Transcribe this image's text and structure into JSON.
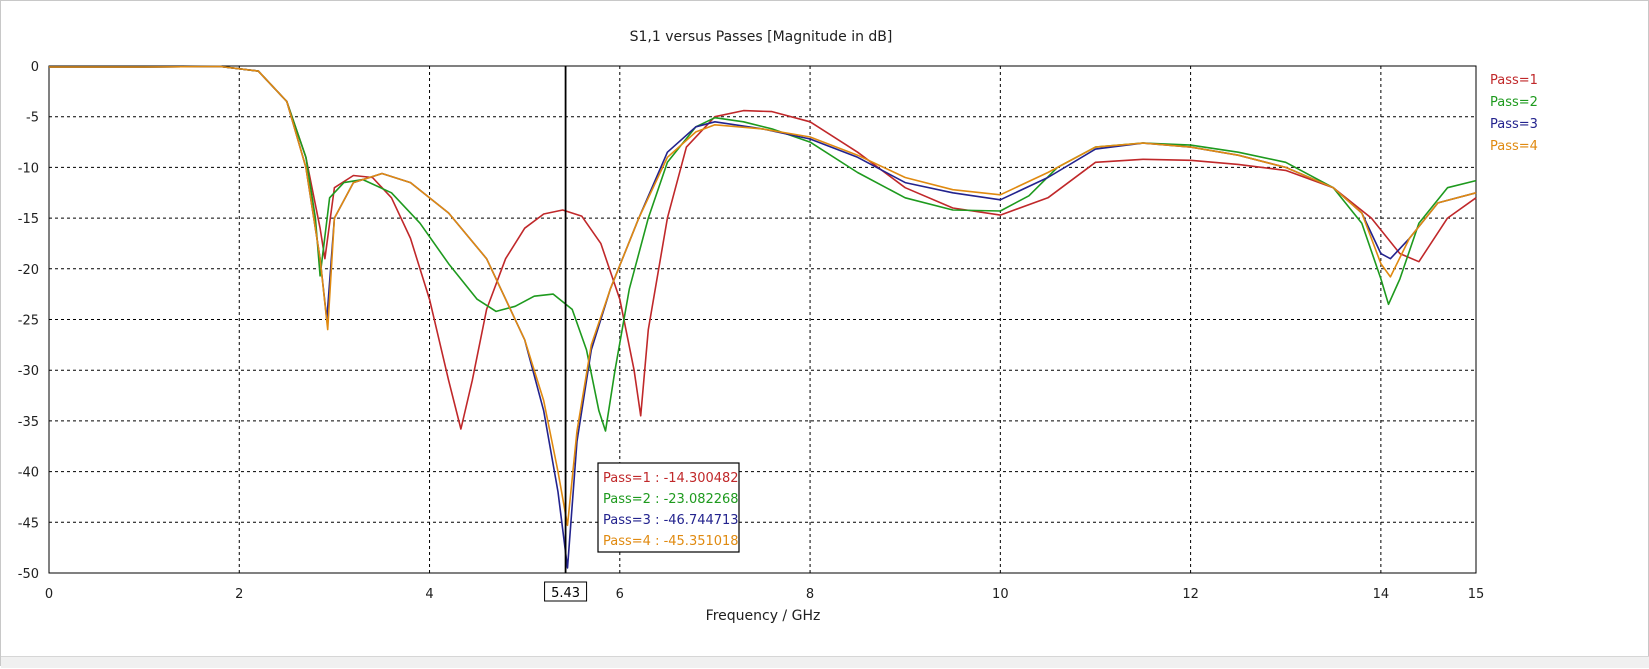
{
  "chart_data": {
    "type": "line",
    "title": "S1,1 versus Passes [Magnitude in dB]",
    "xlabel": "Frequency / GHz",
    "ylabel": "",
    "xlim": [
      0,
      15
    ],
    "ylim": [
      -50,
      0
    ],
    "xticks": [
      0,
      2,
      4,
      6,
      8,
      10,
      12,
      14,
      15
    ],
    "yticks": [
      0,
      -5,
      -10,
      -15,
      -20,
      -25,
      -30,
      -35,
      -40,
      -45,
      -50
    ],
    "grid": true,
    "legend_position": "right",
    "marker": {
      "x": 5.43,
      "label": "5.43"
    },
    "readout": [
      {
        "text": "Pass=1 : -14.300482",
        "color": "#c0282a"
      },
      {
        "text": "Pass=2 : -23.082268",
        "color": "#1e9a1e"
      },
      {
        "text": "Pass=3 : -46.744713",
        "color": "#23238e"
      },
      {
        "text": "Pass=4 : -45.351018",
        "color": "#e08a10"
      }
    ],
    "series": [
      {
        "name": "Pass=1",
        "color": "#c0282a",
        "x": [
          0,
          1,
          1.8,
          2.2,
          2.5,
          2.7,
          2.85,
          2.9,
          3.0,
          3.2,
          3.4,
          3.6,
          3.8,
          4.0,
          4.2,
          4.33,
          4.45,
          4.6,
          4.8,
          5.0,
          5.2,
          5.4,
          5.6,
          5.8,
          6.0,
          6.15,
          6.22,
          6.3,
          6.5,
          6.7,
          7.0,
          7.3,
          7.6,
          8.0,
          8.5,
          9.0,
          9.5,
          10.0,
          10.5,
          11.0,
          11.5,
          12.0,
          12.5,
          13.0,
          13.5,
          13.9,
          14.2,
          14.4,
          14.7,
          15.0
        ],
        "y": [
          -0.1,
          -0.1,
          -0.05,
          -0.5,
          -3.5,
          -9,
          -16,
          -19,
          -12,
          -10.8,
          -11,
          -13,
          -17,
          -23,
          -31,
          -35.8,
          -31,
          -24,
          -19,
          -16,
          -14.6,
          -14.2,
          -14.8,
          -17.5,
          -23,
          -30,
          -34.5,
          -26,
          -15,
          -8,
          -5,
          -4.4,
          -4.5,
          -5.5,
          -8.5,
          -12,
          -14,
          -14.7,
          -13,
          -9.5,
          -9.2,
          -9.3,
          -9.7,
          -10.3,
          -12,
          -15,
          -18.5,
          -19.3,
          -15,
          -13
        ]
      },
      {
        "name": "Pass=2",
        "color": "#1e9a1e",
        "x": [
          0,
          1,
          1.8,
          2.2,
          2.5,
          2.7,
          2.8,
          2.85,
          2.95,
          3.1,
          3.3,
          3.6,
          3.9,
          4.2,
          4.5,
          4.7,
          4.9,
          5.1,
          5.3,
          5.5,
          5.65,
          5.78,
          5.85,
          5.95,
          6.1,
          6.3,
          6.5,
          6.8,
          7.0,
          7.3,
          7.6,
          8.0,
          8.5,
          9.0,
          9.5,
          10.0,
          10.3,
          10.6,
          11.0,
          11.5,
          12.0,
          12.5,
          13.0,
          13.5,
          13.8,
          14.0,
          14.08,
          14.2,
          14.4,
          14.7,
          15.0
        ],
        "y": [
          -0.1,
          -0.1,
          -0.05,
          -0.5,
          -3.5,
          -9,
          -15,
          -20.7,
          -13,
          -11.5,
          -11.2,
          -12.5,
          -15.5,
          -19.5,
          -23,
          -24.2,
          -23.7,
          -22.7,
          -22.5,
          -24,
          -28,
          -34,
          -36,
          -30,
          -22,
          -15,
          -9.5,
          -6,
          -5.1,
          -5.5,
          -6.2,
          -7.5,
          -10.5,
          -13,
          -14.2,
          -14.3,
          -12.8,
          -10,
          -8,
          -7.6,
          -7.8,
          -8.5,
          -9.5,
          -12,
          -15.5,
          -21,
          -23.5,
          -21,
          -15.5,
          -12,
          -11.3
        ]
      },
      {
        "name": "Pass=3",
        "color": "#23238e",
        "x": [
          0,
          1,
          1.8,
          2.2,
          2.5,
          2.7,
          2.85,
          2.92,
          3.0,
          3.2,
          3.5,
          3.8,
          4.2,
          4.6,
          5.0,
          5.2,
          5.35,
          5.45,
          5.55,
          5.7,
          5.9,
          6.2,
          6.5,
          6.8,
          7.0,
          7.5,
          8.0,
          8.5,
          9.0,
          9.5,
          10.0,
          10.5,
          11.0,
          11.5,
          12.0,
          12.5,
          13.0,
          13.5,
          13.8,
          14.0,
          14.1,
          14.3,
          14.6,
          15.0
        ],
        "y": [
          -0.1,
          -0.1,
          -0.05,
          -0.5,
          -3.5,
          -10,
          -19,
          -25,
          -15,
          -11.5,
          -10.6,
          -11.5,
          -14.5,
          -19,
          -27,
          -34,
          -42,
          -49.5,
          -37,
          -28,
          -22,
          -15,
          -8.5,
          -6,
          -5.5,
          -6.2,
          -7.2,
          -9,
          -11.5,
          -12.5,
          -13.2,
          -11,
          -8.2,
          -7.6,
          -8,
          -8.8,
          -10,
          -12,
          -14.5,
          -18.5,
          -19,
          -17,
          -13.5,
          -12.5
        ]
      },
      {
        "name": "Pass=4",
        "color": "#e08a10",
        "x": [
          0,
          1,
          1.8,
          2.2,
          2.5,
          2.7,
          2.85,
          2.93,
          3.0,
          3.2,
          3.5,
          3.8,
          4.2,
          4.6,
          5.0,
          5.2,
          5.35,
          5.45,
          5.55,
          5.7,
          5.9,
          6.2,
          6.5,
          6.8,
          7.0,
          7.5,
          8.0,
          8.5,
          9.0,
          9.5,
          10.0,
          10.5,
          11.0,
          11.5,
          12.0,
          12.5,
          13.0,
          13.5,
          13.8,
          14.0,
          14.1,
          14.3,
          14.6,
          15.0
        ],
        "y": [
          -0.1,
          -0.1,
          -0.05,
          -0.5,
          -3.5,
          -10,
          -19,
          -26,
          -15,
          -11.5,
          -10.6,
          -11.5,
          -14.5,
          -19,
          -27,
          -33,
          -40,
          -45.3,
          -36,
          -27.5,
          -22,
          -15,
          -9,
          -6.5,
          -5.8,
          -6.2,
          -7,
          -8.8,
          -11,
          -12.2,
          -12.7,
          -10.5,
          -8,
          -7.6,
          -8,
          -8.8,
          -10,
          -12,
          -14.5,
          -19.5,
          -20.8,
          -17,
          -13.5,
          -12.5
        ]
      }
    ]
  }
}
